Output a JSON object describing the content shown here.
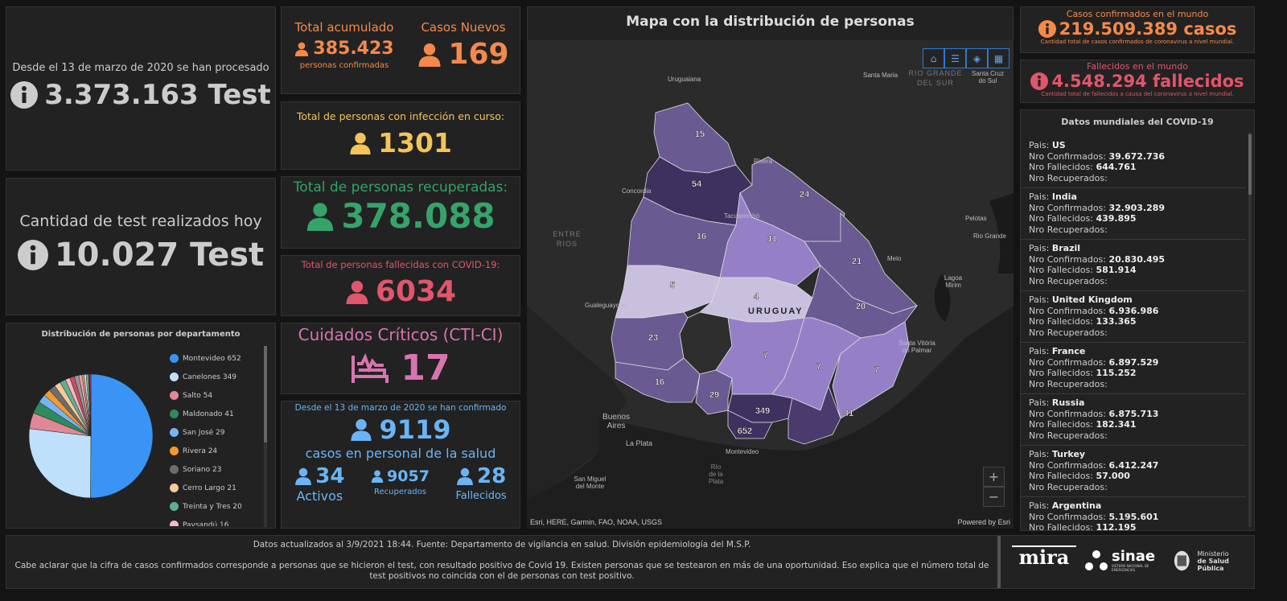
{
  "tests_total": {
    "label": "Desde el 13 de marzo de 2020 se han procesado",
    "value": "3.373.163 Test"
  },
  "tests_today": {
    "label": "Cantidad de test realizados hoy",
    "value": "10.027 Test"
  },
  "total_acumulado": {
    "label": "Total acumulado",
    "value": "385.423",
    "sub": "personas confirmadas"
  },
  "casos_nuevos": {
    "label": "Casos Nuevos",
    "value": "169"
  },
  "en_curso": {
    "label": "Total de personas con infección en curso:",
    "value": "1301"
  },
  "recuperadas": {
    "label": "Total de personas recuperadas:",
    "value": "378.088"
  },
  "fallecidas": {
    "label": "Total de personas fallecidas con COVID-19:",
    "value": "6034"
  },
  "cti": {
    "label": "Cuidados Críticos (CTI-CI)",
    "value": "17"
  },
  "salud": {
    "label": "Desde el 13 de marzo de 2020 se han confirmado",
    "value": "9119",
    "sub": "casos en personal de la salud",
    "activos": {
      "value": "34",
      "label": "Activos"
    },
    "recuperados": {
      "value": "9057",
      "label": "Recuperados"
    },
    "fallecidos": {
      "value": "28",
      "label": "Fallecidos"
    }
  },
  "colors": {
    "orange": "#f5894b",
    "yellow": "#f3c45a",
    "green": "#35a36a",
    "red": "#e0566c",
    "pink": "#d874b0",
    "blue": "#6ab4f6"
  },
  "chart_data": {
    "type": "pie",
    "title": "Distribución de personas por departamento",
    "legend": "right",
    "categories": [
      "Montevideo",
      "Canelones",
      "Salto",
      "Maldonado",
      "San José",
      "Rivera",
      "Soriano",
      "Cerro Largo",
      "Treinta y Tres",
      "Paysandú"
    ],
    "values": [
      652,
      349,
      54,
      41,
      29,
      24,
      23,
      21,
      20,
      16
    ],
    "colors": [
      "#3a94f5",
      "#bfe0fb",
      "#e08898",
      "#2f8a5c",
      "#78b4f5",
      "#f39a2e",
      "#6d6d6d",
      "#f6c99a",
      "#5fb08f",
      "#f5b8c8"
    ],
    "unlabeled_values": [
      16,
      15,
      11,
      7,
      7,
      7,
      5,
      4
    ],
    "unlabeled_colors": [
      "#c94f5f",
      "#999",
      "#e6a0b4",
      "#f0a060",
      "#cde6f7",
      "#7fbf9f",
      "#555",
      "#b03a7a"
    ]
  },
  "map": {
    "title": "Mapa con la distribución de personas",
    "departments": [
      {
        "value": "15"
      },
      {
        "value": "54"
      },
      {
        "value": "24"
      },
      {
        "value": "16"
      },
      {
        "value": "11"
      },
      {
        "value": "21"
      },
      {
        "value": "5"
      },
      {
        "value": "4"
      },
      {
        "value": "20"
      },
      {
        "value": "23"
      },
      {
        "value": ""
      },
      {
        "value": "16"
      },
      {
        "value": "29"
      },
      {
        "value": "7"
      },
      {
        "value": "7"
      },
      {
        "value": "7"
      },
      {
        "value": "349"
      },
      {
        "value": "652"
      },
      {
        "value": "41"
      }
    ],
    "places": [
      "Uruguaiana",
      "Santa Maria",
      "RIO GRANDE DEL SUR",
      "Santa Cruz do Sul",
      "Rivera",
      "Concordia",
      "Tacuarembó",
      "Pelotas",
      "Rio Grande",
      "ENTRE RIOS",
      "Melo",
      "Lagoa Mirim",
      "Gualeguaychú",
      "URUGUAY",
      "Santa Vitória do Palmar",
      "Buenos Aires",
      "La Plata",
      "Montevideo",
      "Río de la Plata",
      "San Miguel del Monte"
    ],
    "attribution": "Esri, HERE, Garmin, FAO, NOAA, USGS",
    "powered": "Powered by Esri",
    "zoom_in": "+",
    "zoom_out": "−",
    "tools": [
      "home-icon",
      "list-icon",
      "layers-icon",
      "qr-icon"
    ]
  },
  "world_cases": {
    "label": "Casos confirmados en el mundo",
    "value": "219.509.389 casos",
    "sub": "Cantidad total de casos confirmados de coronavirus a nivel mundial."
  },
  "world_deaths": {
    "label": "Fallecidos en el mundo",
    "value": "4.548.294 fallecidos",
    "sub": "Cantidad total de fallecidos a causa del coronavirus a nivel mundial."
  },
  "world_list": {
    "title": "Datos mundiales del COVID-19",
    "l_pais": "Pais: ",
    "l_conf": "Nro Confirmados: ",
    "l_fall": "Nro Fallecidos: ",
    "l_rec": "Nro Recuperados:",
    "items": [
      {
        "pais": "US",
        "conf": "39.672.736",
        "fall": "644.761"
      },
      {
        "pais": "India",
        "conf": "32.903.289",
        "fall": "439.895"
      },
      {
        "pais": "Brazil",
        "conf": "20.830.495",
        "fall": "581.914"
      },
      {
        "pais": "United Kingdom",
        "conf": "6.936.986",
        "fall": "133.365"
      },
      {
        "pais": "France",
        "conf": "6.897.529",
        "fall": "115.252"
      },
      {
        "pais": "Russia",
        "conf": "6.875.713",
        "fall": "182.341"
      },
      {
        "pais": "Turkey",
        "conf": "6.412.247",
        "fall": "57.000"
      },
      {
        "pais": "Argentina",
        "conf": "5.195.601",
        "fall": "112.195"
      }
    ]
  },
  "footer": {
    "line1": "Datos actualizados al 3/9/2021 18:44. Fuente: Departamento de vigilancia en salud. División epidemiología del M.S.P.",
    "line2": "Cabe aclarar que la cifra de casos confirmados corresponde a personas que se hicieron el test, con resultado positivo de Covid 19. Existen personas que se testearon en más de una oportunidad. Eso explica que el número total de test positivos no coincida con el de personas con test positivo.",
    "logos": {
      "mira": "mira",
      "sinae": "sinae",
      "sinae_sub": "SISTEMA NACIONAL DE EMERGENCIAS",
      "msp1": "Ministerio",
      "msp2": "de Salud Pública"
    }
  }
}
